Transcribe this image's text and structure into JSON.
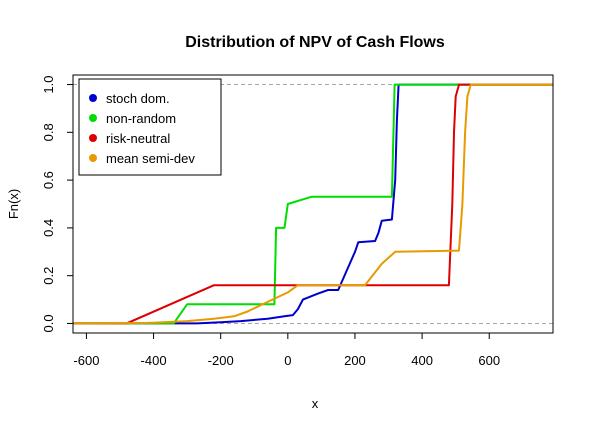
{
  "chart_data": {
    "type": "line",
    "title": "Distribution of NPV of Cash Flows",
    "xlabel": "x",
    "ylabel": "Fn(x)",
    "xlim": [
      -640,
      790
    ],
    "ylim": [
      -0.04,
      1.04
    ],
    "x_ticks": [
      -600,
      -400,
      -200,
      0,
      200,
      400,
      600
    ],
    "y_ticks": [
      0.0,
      0.2,
      0.4,
      0.6,
      0.8,
      1.0
    ],
    "x_tick_labels": [
      "-600",
      "-400",
      "-200",
      "0",
      "200",
      "400",
      "600"
    ],
    "y_tick_labels": [
      "0.0",
      "0.2",
      "0.4",
      "0.6",
      "0.8",
      "1.0"
    ],
    "reference_lines": [
      0,
      1
    ],
    "legend_position": "top-left",
    "series": [
      {
        "name": "stoch dom.",
        "color": "#0000CD",
        "points": [
          [
            -640,
            0
          ],
          [
            -270,
            0
          ],
          [
            -200,
            0.005
          ],
          [
            -140,
            0.01
          ],
          [
            -60,
            0.02
          ],
          [
            -10,
            0.03
          ],
          [
            15,
            0.035
          ],
          [
            30,
            0.06
          ],
          [
            45,
            0.1
          ],
          [
            90,
            0.125
          ],
          [
            120,
            0.14
          ],
          [
            150,
            0.14
          ],
          [
            175,
            0.22
          ],
          [
            200,
            0.3
          ],
          [
            210,
            0.34
          ],
          [
            260,
            0.345
          ],
          [
            270,
            0.38
          ],
          [
            280,
            0.43
          ],
          [
            310,
            0.435
          ],
          [
            320,
            0.6
          ],
          [
            325,
            0.85
          ],
          [
            330,
            1.0
          ],
          [
            790,
            1.0
          ]
        ]
      },
      {
        "name": "non-random",
        "color": "#00DD00",
        "points": [
          [
            -640,
            0
          ],
          [
            -340,
            0
          ],
          [
            -300,
            0.08
          ],
          [
            -40,
            0.08
          ],
          [
            -35,
            0.4
          ],
          [
            -10,
            0.4
          ],
          [
            0,
            0.5
          ],
          [
            70,
            0.53
          ],
          [
            310,
            0.53
          ],
          [
            318,
            1.0
          ],
          [
            790,
            1.0
          ]
        ]
      },
      {
        "name": "risk-neutral",
        "color": "#DD0000",
        "points": [
          [
            -640,
            0
          ],
          [
            -480,
            0
          ],
          [
            -220,
            0.16
          ],
          [
            480,
            0.16
          ],
          [
            490,
            0.5
          ],
          [
            495,
            0.8
          ],
          [
            500,
            0.95
          ],
          [
            510,
            1.0
          ],
          [
            790,
            1.0
          ]
        ]
      },
      {
        "name": "mean semi-dev",
        "color": "#E89A00",
        "points": [
          [
            -640,
            0
          ],
          [
            -420,
            0.002
          ],
          [
            -300,
            0.01
          ],
          [
            -220,
            0.02
          ],
          [
            -160,
            0.03
          ],
          [
            -120,
            0.05
          ],
          [
            -60,
            0.09
          ],
          [
            0,
            0.13
          ],
          [
            30,
            0.16
          ],
          [
            230,
            0.16
          ],
          [
            280,
            0.25
          ],
          [
            320,
            0.3
          ],
          [
            510,
            0.305
          ],
          [
            520,
            0.5
          ],
          [
            528,
            0.8
          ],
          [
            535,
            0.95
          ],
          [
            545,
            1.0
          ],
          [
            790,
            1.0
          ]
        ]
      }
    ]
  }
}
